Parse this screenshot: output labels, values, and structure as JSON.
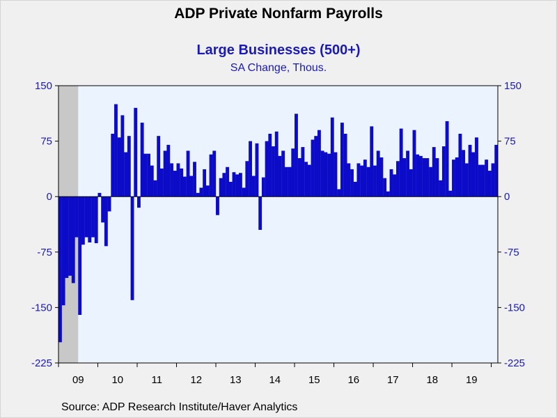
{
  "header": {
    "title": "ADP Private Nonfarm Payrolls",
    "subtitle": "Large Businesses (500+)",
    "units": "SA Change, Thous."
  },
  "footer": {
    "source": "Source:  ADP Research Institute/Haver Analytics"
  },
  "colors": {
    "bar": "#0c0cc8",
    "plot_bg": "#eaf3fe",
    "recession": "#c8c8c8",
    "axis_text": "#1a1ab4"
  },
  "chart_data": {
    "type": "bar",
    "title": "ADP Private Nonfarm Payrolls",
    "subtitle": "Large Businesses (500+)",
    "ylabel": "SA Change, Thous.",
    "xlabel": "",
    "ylim": [
      -225,
      150
    ],
    "yticks": [
      150,
      75,
      0,
      -75,
      -150,
      -225
    ],
    "ytick_labels": [
      "150",
      "75",
      "0",
      "-75",
      "-150",
      "-225"
    ],
    "year_labels": [
      "09",
      "10",
      "11",
      "12",
      "13",
      "14",
      "15",
      "16",
      "17",
      "18",
      "19"
    ],
    "start": "2009-01",
    "frequency": "monthly",
    "recession_shading": {
      "start": "2009-01",
      "end": "2009-06"
    },
    "grid": false,
    "dual_y_axis": true,
    "values": [
      -197,
      -147,
      -110,
      -107,
      -117,
      -55,
      -160,
      -65,
      -55,
      -62,
      -55,
      -63,
      5,
      -35,
      -67,
      -20,
      85,
      125,
      80,
      110,
      60,
      82,
      -140,
      120,
      -15,
      100,
      58,
      58,
      42,
      22,
      82,
      38,
      62,
      70,
      45,
      35,
      45,
      38,
      27,
      62,
      28,
      47,
      5,
      12,
      37,
      15,
      57,
      62,
      -25,
      25,
      32,
      40,
      20,
      33,
      30,
      32,
      12,
      48,
      75,
      28,
      72,
      -45,
      26,
      75,
      85,
      68,
      88,
      55,
      62,
      40,
      40,
      65,
      112,
      52,
      67,
      47,
      43,
      77,
      82,
      90,
      62,
      60,
      58,
      107,
      60,
      10,
      100,
      85,
      45,
      37,
      20,
      45,
      42,
      50,
      40,
      95,
      42,
      62,
      53,
      25,
      7,
      37,
      30,
      48,
      92,
      52,
      62,
      37,
      90,
      57,
      55,
      52,
      52,
      40,
      67,
      52,
      22,
      68,
      102,
      8,
      50,
      53,
      85,
      63,
      45,
      70,
      60,
      80,
      43,
      43,
      50,
      35,
      45,
      70
    ]
  }
}
